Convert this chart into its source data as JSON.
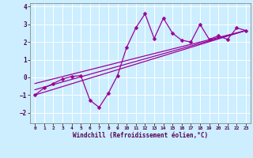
{
  "xlabel": "Windchill (Refroidissement éolien,°C)",
  "ylabel": "",
  "bg_color": "#cceeff",
  "grid_color": "#ffffff",
  "line_color": "#990099",
  "xlim": [
    -0.5,
    23.5
  ],
  "ylim": [
    -2.6,
    4.2
  ],
  "yticks": [
    -2,
    -1,
    0,
    1,
    2,
    3,
    4
  ],
  "xticks": [
    0,
    1,
    2,
    3,
    4,
    5,
    6,
    7,
    8,
    9,
    10,
    11,
    12,
    13,
    14,
    15,
    16,
    17,
    18,
    19,
    20,
    21,
    22,
    23
  ],
  "main_x": [
    0,
    1,
    2,
    3,
    4,
    5,
    6,
    7,
    8,
    9,
    10,
    11,
    12,
    13,
    14,
    15,
    16,
    17,
    18,
    19,
    20,
    21,
    22,
    23
  ],
  "main_y": [
    -1.0,
    -0.6,
    -0.35,
    -0.1,
    0.05,
    0.1,
    -1.3,
    -1.7,
    -0.9,
    0.1,
    1.7,
    2.8,
    3.6,
    2.2,
    3.35,
    2.5,
    2.1,
    2.0,
    3.0,
    2.15,
    2.35,
    2.15,
    2.8,
    2.65
  ],
  "trend_lines": [
    {
      "x": [
        0,
        23
      ],
      "y": [
        -1.0,
        2.65
      ]
    },
    {
      "x": [
        0,
        23
      ],
      "y": [
        -0.7,
        2.65
      ]
    },
    {
      "x": [
        0,
        23
      ],
      "y": [
        -0.35,
        2.65
      ]
    }
  ]
}
